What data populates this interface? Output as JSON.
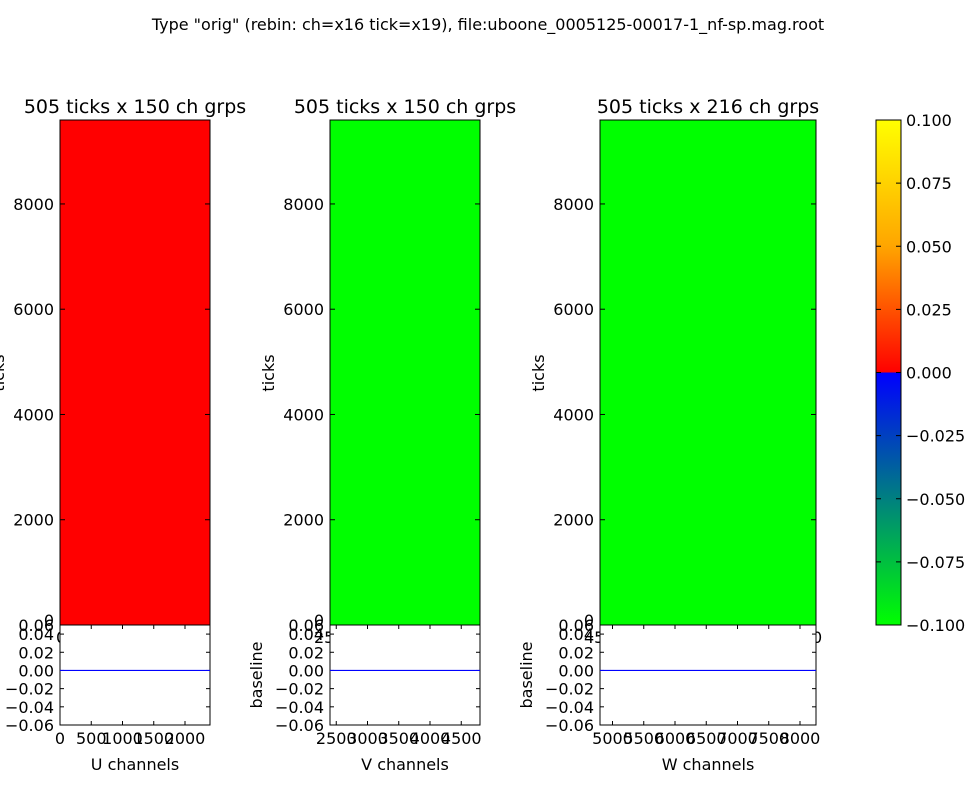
{
  "figure_title": "Type \"orig\" (rebin: ch=x16 tick=x19), file:uboone_0005125-00017-1_nf-sp.mag.root",
  "colors": {
    "u_fill": "#ff0000",
    "v_fill": "#00ff00",
    "w_fill": "#00ff00",
    "baseline_line": "#0000ff",
    "colormap": [
      "#00ff00",
      "#008080",
      "#0000ff",
      "#ff0000",
      "#ffa500",
      "#ffff00"
    ]
  },
  "chart_data": [
    {
      "type": "heatmap",
      "title": "505 ticks x 150 ch grps",
      "ylabel": "ticks",
      "xlim": [
        0,
        2400
      ],
      "ylim": [
        0,
        9595
      ],
      "yticks": [
        0,
        2000,
        4000,
        6000,
        8000
      ],
      "ytick_labels": [
        "0",
        "2000",
        "4000",
        "6000",
        "8000"
      ],
      "xtick_labels_visible": [
        "0"
      ],
      "fill_color": "#ff0000",
      "value": 0.0
    },
    {
      "type": "line",
      "xlabel": "U channels",
      "xlim": [
        0,
        2400
      ],
      "ylim": [
        -0.06,
        0.05
      ],
      "xticks": [
        0,
        500,
        1000,
        1500,
        2000
      ],
      "xtick_labels": [
        "0",
        "500",
        "1000",
        "1500",
        "2000"
      ],
      "yticks": [
        -0.06,
        -0.04,
        -0.02,
        0.0,
        0.02,
        0.04
      ],
      "ytick_labels": [
        "−0.06",
        "−0.04",
        "−0.02",
        "0.00",
        "0.02",
        "0.04"
      ],
      "top_tick_label": "0.06",
      "x": [
        0,
        2400
      ],
      "y": [
        0,
        0
      ]
    },
    {
      "type": "heatmap",
      "title": "505 ticks x 150 ch grps",
      "ylabel": "ticks",
      "xlim": [
        2400,
        4800
      ],
      "ylim": [
        0,
        9595
      ],
      "yticks": [
        0,
        2000,
        4000,
        6000,
        8000
      ],
      "ytick_labels": [
        "0",
        "2000",
        "4000",
        "6000",
        "8000"
      ],
      "xtick_labels_visible": [
        "25"
      ],
      "fill_color": "#00ff00",
      "value": -0.1
    },
    {
      "type": "line",
      "xlabel": "V channels",
      "ylabel": "baseline",
      "xlim": [
        2400,
        4800
      ],
      "ylim": [
        -0.06,
        0.05
      ],
      "xticks": [
        2500,
        3000,
        3500,
        4000,
        4500
      ],
      "xtick_labels": [
        "2500",
        "3000",
        "3500",
        "4000",
        "4500"
      ],
      "yticks": [
        -0.06,
        -0.04,
        -0.02,
        0.0,
        0.02,
        0.04
      ],
      "ytick_labels": [
        "−0.06",
        "−0.04",
        "−0.02",
        "0.00",
        "0.02",
        "0.04"
      ],
      "top_tick_label": "0.06",
      "x": [
        2400,
        4800
      ],
      "y": [
        0,
        0
      ]
    },
    {
      "type": "heatmap",
      "title": "505 ticks x 216 ch grps",
      "ylabel": "ticks",
      "xlim": [
        4800,
        8256
      ],
      "ylim": [
        0,
        9595
      ],
      "yticks": [
        0,
        2000,
        4000,
        6000,
        8000
      ],
      "ytick_labels": [
        "0",
        "2000",
        "4000",
        "6000",
        "8000"
      ],
      "xtick_labels_visible": [
        "45",
        "0"
      ],
      "fill_color": "#00ff00",
      "value": -0.1
    },
    {
      "type": "line",
      "xlabel": "W channels",
      "ylabel": "baseline",
      "xlim": [
        4800,
        8256
      ],
      "ylim": [
        -0.06,
        0.05
      ],
      "xticks": [
        5000,
        5500,
        6000,
        6500,
        7000,
        7500,
        8000
      ],
      "xtick_labels": [
        "5000",
        "5500",
        "6000",
        "6500",
        "7000",
        "7500",
        "8000"
      ],
      "yticks": [
        -0.06,
        -0.04,
        -0.02,
        0.0,
        0.02,
        0.04
      ],
      "ytick_labels": [
        "−0.06",
        "−0.04",
        "−0.02",
        "0.00",
        "0.02",
        "0.04"
      ],
      "top_tick_label": "0.06",
      "x": [
        4800,
        8256
      ],
      "y": [
        0,
        0
      ]
    },
    {
      "type": "colorbar",
      "range": [
        -0.1,
        0.1
      ],
      "ticks": [
        -0.1,
        -0.075,
        -0.05,
        -0.025,
        0.0,
        0.025,
        0.05,
        0.075,
        0.1
      ],
      "tick_labels": [
        "−0.100",
        "−0.075",
        "−0.050",
        "−0.025",
        "0.000",
        "0.025",
        "0.050",
        "0.075",
        "0.100"
      ]
    }
  ]
}
